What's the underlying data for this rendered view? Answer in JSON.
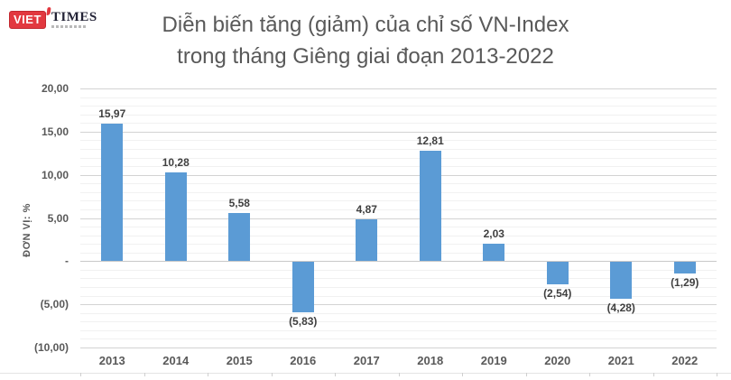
{
  "logo": {
    "viet": "VIET",
    "times": "TIMES",
    "brand_red": "#e2383f"
  },
  "title": {
    "line1": "Diễn biến tăng (giảm) của chỉ số VN-Index",
    "line2": "trong tháng Giêng giai đoạn 2013-2022"
  },
  "chart_data": {
    "type": "bar",
    "title": "Diễn biến tăng (giảm) của chỉ số VN-Index trong tháng Giêng giai đoạn 2013-2022",
    "xlabel": "",
    "ylabel": "ĐƠN VỊ: %",
    "categories": [
      "2013",
      "2014",
      "2015",
      "2016",
      "2017",
      "2018",
      "2019",
      "2020",
      "2021",
      "2022"
    ],
    "values": [
      15.97,
      10.28,
      5.58,
      -5.83,
      4.87,
      12.81,
      2.03,
      -2.54,
      -4.28,
      -1.29
    ],
    "data_labels": [
      "15,97",
      "10,28",
      "5,58",
      "(5,83)",
      "4,87",
      "12,81",
      "2,03",
      "(2,54)",
      "(4,28)",
      "(1,29)"
    ],
    "ylim": [
      -10,
      20
    ],
    "y_ticks": [
      {
        "value": 20,
        "label": "20,00"
      },
      {
        "value": 15,
        "label": "15,00"
      },
      {
        "value": 10,
        "label": "10,00"
      },
      {
        "value": 5,
        "label": "5,00"
      },
      {
        "value": 0,
        "label": "-"
      },
      {
        "value": -5,
        "label": "(5,00)"
      },
      {
        "value": -10,
        "label": "(10,00)"
      }
    ],
    "major_unit": 5,
    "minor_unit": 1,
    "grid": "horizontal major + minor gridlines",
    "legend": "none",
    "bar_color": "#5b9bd5"
  }
}
